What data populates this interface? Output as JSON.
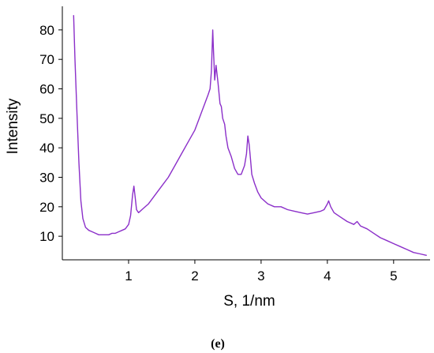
{
  "panel_label": "(e)",
  "chart_data": {
    "type": "line",
    "xlabel": "S,  1/nm",
    "ylabel": "Intensity",
    "xlim": [
      0.0,
      5.55
    ],
    "ylim": [
      2,
      88
    ],
    "x_ticks": [
      1,
      2,
      3,
      4,
      5
    ],
    "y_ticks": [
      10,
      20,
      30,
      40,
      50,
      60,
      70,
      80
    ],
    "grid": false,
    "line_color": "#8b2fc9",
    "series": [
      {
        "x": [
          0.17,
          0.19,
          0.22,
          0.25,
          0.28,
          0.31,
          0.35,
          0.4,
          0.45,
          0.5,
          0.55,
          0.6,
          0.65,
          0.7,
          0.75,
          0.8,
          0.85,
          0.9,
          0.95,
          1.0,
          1.03,
          1.06,
          1.08,
          1.1,
          1.12,
          1.15,
          1.2,
          1.3,
          1.4,
          1.5,
          1.6,
          1.7,
          1.8,
          1.9,
          2.0,
          2.05,
          2.1,
          2.15,
          2.2,
          2.23,
          2.25,
          2.27,
          2.28,
          2.3,
          2.32,
          2.35,
          2.38,
          2.4,
          2.42,
          2.45,
          2.47,
          2.5,
          2.55,
          2.6,
          2.65,
          2.7,
          2.75,
          2.78,
          2.8,
          2.82,
          2.84,
          2.86,
          2.9,
          2.95,
          3.0,
          3.1,
          3.2,
          3.3,
          3.4,
          3.5,
          3.6,
          3.7,
          3.8,
          3.9,
          3.95,
          4.0,
          4.02,
          4.05,
          4.1,
          4.2,
          4.3,
          4.4,
          4.45,
          4.5,
          4.6,
          4.7,
          4.8,
          4.9,
          5.0,
          5.1,
          5.2,
          5.3,
          5.4,
          5.5
        ],
        "y": [
          85,
          70,
          52,
          35,
          22,
          16,
          13,
          12,
          11.5,
          11,
          10.5,
          10.5,
          10.5,
          10.5,
          11,
          11,
          11.5,
          12,
          12.5,
          14,
          17,
          24,
          27,
          23,
          19,
          18,
          19,
          21,
          24,
          27,
          30,
          34,
          38,
          42,
          46,
          49,
          52,
          55,
          58,
          60,
          66,
          80,
          74,
          63,
          68,
          62,
          55,
          54,
          50,
          48,
          44,
          40,
          37,
          33,
          31,
          31,
          34,
          38,
          44,
          41,
          36,
          31,
          28,
          25,
          23,
          21,
          20,
          20,
          19,
          18.5,
          18,
          17.5,
          18,
          18.5,
          19,
          21,
          22,
          20,
          18,
          16.5,
          15,
          14,
          15,
          13.5,
          12.5,
          11,
          9.5,
          8.5,
          7.5,
          6.5,
          5.5,
          4.5,
          4,
          3.5
        ]
      }
    ]
  }
}
